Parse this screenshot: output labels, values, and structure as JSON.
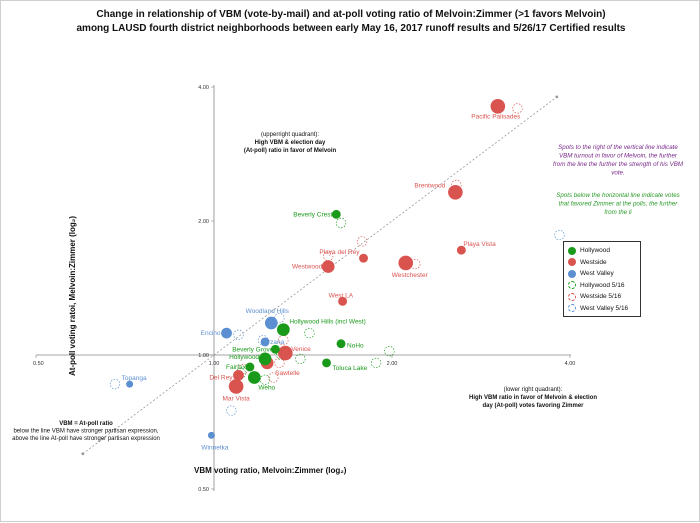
{
  "titles": {
    "line1": "Change in relationship of VBM (vote-by-mail) and at-poll voting ratio of Melvoin:Zimmer (>1 favors Melvoin)",
    "line2": "among LAUSD fourth district neighborhoods between early May 16, 2017 runoff results and 5/26/17 Certified results"
  },
  "annotations": {
    "upper_quadrant": [
      "(upperright quadrant):",
      "High VBM & election day",
      "(At-poll) ratio in favor of Melvoin"
    ],
    "upper_quadrant_bold": [
      false,
      true,
      true
    ],
    "lower_quadrant": [
      "(lower right quadrant):",
      "High VBM ratio in favor of Melvoin & election",
      "day (At-poll) votes favoring Zimmer"
    ],
    "lower_quadrant_bold": [
      false,
      true,
      true
    ],
    "vbm_note": [
      "VBM = At-poll ratio",
      "below the line VBM have stronger partisan expression,",
      "above the line At-poll have stronger partisan expression"
    ],
    "vbm_note_bold": [
      true,
      false,
      false
    ],
    "side_purple": [
      "Spots to the right of the vertical line indicate",
      "VBM turnout in favor of Melvoin, the further",
      "from the line the further the strength of his VBM",
      "vote."
    ],
    "side_green": [
      "Spots below the horizontal line indicate votes",
      "that favored Zimmer at the polls, the further",
      "from the li"
    ]
  },
  "colors": {
    "hollywood": "#1a9a1a",
    "westside": "#d9534f",
    "west_valley": "#5b8fd1",
    "purple_text": "#7a2a8a",
    "green_text": "#2a9a2a"
  },
  "chart_data": {
    "type": "scatter",
    "x_scale": "log2",
    "y_scale": "log2",
    "xlabel": "VBM voting ratio, Melvoin:Zimmer (log₂)",
    "ylabel": "At-poll voting ratoi, Melvoin:Zimmer (log₂)",
    "xlim": [
      0.5,
      4.0
    ],
    "ylim": [
      0.5,
      4.0
    ],
    "x_ticks": [
      "0.50",
      "1.00",
      "2.00",
      "4.00"
    ],
    "y_ticks": [
      "4.00",
      "2.00",
      "1.00",
      "0.50"
    ],
    "x_tick_values": [
      0.5,
      1,
      2,
      4
    ],
    "y_tick_values": [
      4,
      2,
      1,
      0.5
    ],
    "legend": {
      "position": "right",
      "entries": [
        {
          "label": "Hollywood",
          "series": "Hollywood",
          "style": "filled"
        },
        {
          "label": "Westside",
          "series": "Westside",
          "style": "filled"
        },
        {
          "label": "West Valley",
          "series": "West Valley",
          "style": "filled"
        },
        {
          "label": "Hollywood 5/16",
          "series": "Hollywood",
          "style": "dashed"
        },
        {
          "label": "Westside 5/16",
          "series": "Westside",
          "style": "dashed"
        },
        {
          "label": "West Valley 5/16",
          "series": "West Valley",
          "style": "dashed"
        }
      ]
    },
    "certified": [
      {
        "label": "Pacific Palisades",
        "region": "Westside",
        "x": 3.02,
        "y": 3.62,
        "size": 6
      },
      {
        "label": "Brentwood",
        "region": "Westside",
        "x": 2.56,
        "y": 2.32,
        "size": 6
      },
      {
        "label": "Playa del Rey",
        "region": "Westside",
        "x": 1.79,
        "y": 1.65,
        "size": 3
      },
      {
        "label": "Playa Vista",
        "region": "Westside",
        "x": 2.62,
        "y": 1.72,
        "size": 3
      },
      {
        "label": "Westwood",
        "region": "Westside",
        "x": 1.56,
        "y": 1.58,
        "size": 5
      },
      {
        "label": "Westchester",
        "region": "Westside",
        "x": 2.11,
        "y": 1.61,
        "size": 6
      },
      {
        "label": "West LA",
        "region": "Westside",
        "x": 1.65,
        "y": 1.32,
        "size": 3
      },
      {
        "label": "Venice",
        "region": "Westside",
        "x": 1.32,
        "y": 1.01,
        "size": 6
      },
      {
        "label": "Sawtelle",
        "region": "Westside",
        "x": 1.23,
        "y": 0.96,
        "size": 5
      },
      {
        "label": "Del Rey",
        "region": "Westside",
        "x": 1.1,
        "y": 0.9,
        "size": 4
      },
      {
        "label": "Mar Vista",
        "region": "Westside",
        "x": 1.09,
        "y": 0.85,
        "size": 6
      },
      {
        "label": "Beverly Crest",
        "region": "Hollywood",
        "x": 1.61,
        "y": 2.07,
        "size": 3
      },
      {
        "label": "Hollywood Hills (incl West)",
        "region": "Hollywood",
        "x": 1.31,
        "y": 1.14,
        "size": 5
      },
      {
        "label": "NoHo",
        "region": "Hollywood",
        "x": 1.64,
        "y": 1.06,
        "size": 3
      },
      {
        "label": "Beverly Grove",
        "region": "Hollywood",
        "x": 1.27,
        "y": 1.03,
        "size": 3
      },
      {
        "label": "Hollywood",
        "region": "Hollywood",
        "x": 1.22,
        "y": 0.98,
        "size": 5
      },
      {
        "label": "Fairfax",
        "region": "Hollywood",
        "x": 1.15,
        "y": 0.94,
        "size": 3
      },
      {
        "label": "Toluca Lake",
        "region": "Hollywood",
        "x": 1.55,
        "y": 0.96,
        "size": 3
      },
      {
        "label": "Weho",
        "region": "Hollywood",
        "x": 1.17,
        "y": 0.89,
        "size": 5
      },
      {
        "label": "Woodland Hills",
        "region": "West Valley",
        "x": 1.25,
        "y": 1.18,
        "size": 5
      },
      {
        "label": "Encino",
        "region": "West Valley",
        "x": 1.05,
        "y": 1.12,
        "size": 4
      },
      {
        "label": "Tarzana",
        "region": "West Valley",
        "x": 1.22,
        "y": 1.07,
        "size": 3
      },
      {
        "label": "Topanga",
        "region": "West Valley",
        "x": 0.72,
        "y": 0.86,
        "size": 2
      },
      {
        "label": "Winnetka",
        "region": "West Valley",
        "x": 0.99,
        "y": 0.66,
        "size": 2
      }
    ],
    "early_5_16": [
      {
        "label": "Pacific Palisades",
        "region": "Westside",
        "x": 3.26,
        "y": 3.58
      },
      {
        "label": "Brentwood",
        "region": "Westside",
        "x": 2.57,
        "y": 2.41
      },
      {
        "label": "Playa del Rey",
        "region": "Westside",
        "x": 1.78,
        "y": 1.8
      },
      {
        "label": "Westwood",
        "region": "Westside",
        "x": 1.56,
        "y": 1.67
      },
      {
        "label": "Westchester",
        "region": "Westside",
        "x": 2.19,
        "y": 1.6
      },
      {
        "label": "Venice",
        "region": "Westside",
        "x": 1.31,
        "y": 1.08
      },
      {
        "label": "Sawtelle",
        "region": "Westside",
        "x": 1.29,
        "y": 0.96
      },
      {
        "label": "Del Rey",
        "region": "Westside",
        "x": 1.12,
        "y": 0.93
      },
      {
        "label": "Mar Vista",
        "region": "Westside",
        "x": 1.26,
        "y": 0.89
      },
      {
        "label": "Beverly Crest",
        "region": "Hollywood",
        "x": 1.64,
        "y": 1.98
      },
      {
        "label": "Hollywood Hills (incl West)",
        "region": "Hollywood",
        "x": 1.45,
        "y": 1.12
      },
      {
        "label": "NoHo",
        "region": "Hollywood",
        "x": 1.98,
        "y": 1.02
      },
      {
        "label": "Beverly Grove",
        "region": "Hollywood",
        "x": 1.3,
        "y": 1.0
      },
      {
        "label": "Hollywood",
        "region": "Hollywood",
        "x": 1.4,
        "y": 0.98
      },
      {
        "label": "Fairfax",
        "region": "Hollywood",
        "x": 1.11,
        "y": 0.91
      },
      {
        "label": "Toluca Lake",
        "region": "Hollywood",
        "x": 1.88,
        "y": 0.96
      },
      {
        "label": "Weho",
        "region": "Hollywood",
        "x": 1.22,
        "y": 0.88
      },
      {
        "label": "Woodland Hills",
        "region": "West Valley",
        "x": 1.29,
        "y": 1.21
      },
      {
        "label": "Encino",
        "region": "West Valley",
        "x": 1.1,
        "y": 1.11
      },
      {
        "label": "Tarzana",
        "region": "West Valley",
        "x": 1.21,
        "y": 1.08
      },
      {
        "label": "Topanga",
        "region": "West Valley",
        "x": 0.68,
        "y": 0.86
      },
      {
        "label": "Winnetka",
        "region": "West Valley",
        "x": 1.07,
        "y": 0.75
      },
      {
        "label": "West Valley outlier",
        "region": "West Valley",
        "x": 3.84,
        "y": 1.86
      }
    ],
    "reference_line": "VBM = At-poll"
  }
}
